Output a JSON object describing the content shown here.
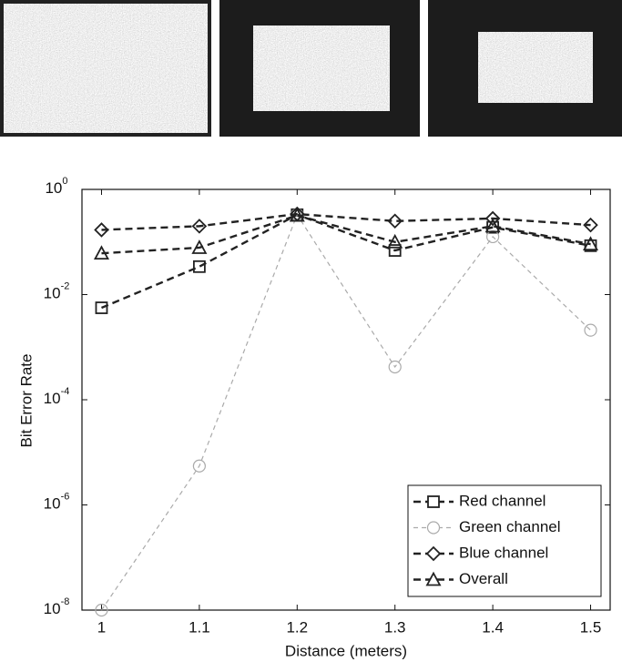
{
  "chart_data": {
    "type": "line",
    "xlabel": "Distance (meters)",
    "ylabel": "Bit Error Rate",
    "x": [
      1,
      1.1,
      1.2,
      1.3,
      1.4,
      1.5
    ],
    "xlim": [
      0.98,
      1.52
    ],
    "xticks": [
      1,
      1.1,
      1.2,
      1.3,
      1.4,
      1.5
    ],
    "ylim": [
      1e-08,
      1
    ],
    "log_y": true,
    "yticks": [
      {
        "value": 1e-08,
        "label": "10",
        "exponent": "-8"
      },
      {
        "value": 1e-06,
        "label": "10",
        "exponent": "-6"
      },
      {
        "value": 0.0001,
        "label": "10",
        "exponent": "-4"
      },
      {
        "value": 0.01,
        "label": "10",
        "exponent": "-2"
      },
      {
        "value": 1,
        "label": "10",
        "exponent": "0"
      }
    ],
    "legend": "lower right",
    "series": [
      {
        "name": "Red channel",
        "color": "#222222",
        "marker": "square",
        "values": [
          0.0056,
          0.034,
          0.33,
          0.069,
          0.19,
          0.085
        ]
      },
      {
        "name": "Green channel",
        "color": "#aaaaaa",
        "marker": "circle",
        "values": [
          1e-08,
          5.5e-06,
          0.33,
          0.00042,
          0.126,
          0.0021
        ]
      },
      {
        "name": "Blue channel",
        "color": "#222222",
        "marker": "diamond",
        "values": [
          0.17,
          0.2,
          0.34,
          0.25,
          0.28,
          0.21
        ]
      },
      {
        "name": "Overall",
        "color": "#222222",
        "marker": "triangle",
        "values": [
          0.061,
          0.078,
          0.32,
          0.1,
          0.2,
          0.091
        ]
      }
    ]
  }
}
